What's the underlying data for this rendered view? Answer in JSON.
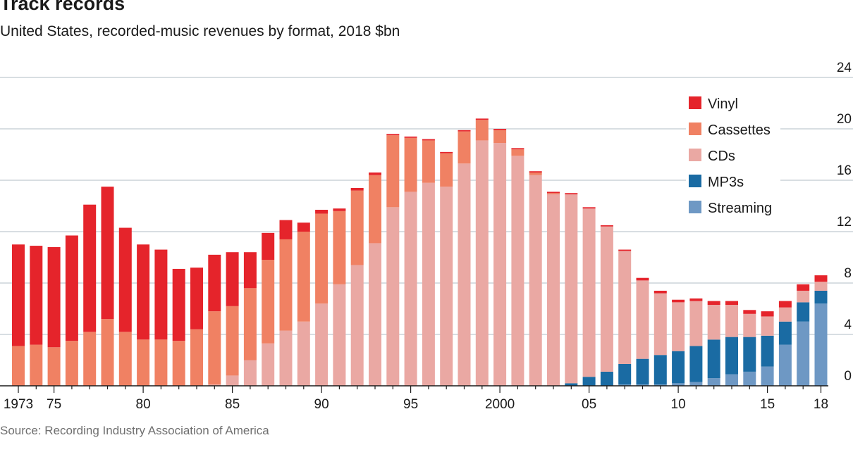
{
  "chart_data": {
    "type": "bar",
    "stacked": true,
    "title": "Track records",
    "subtitle": "United States, recorded-music revenues by format, 2018 $bn",
    "source": "Source: Recording Industry Association of America",
    "categories": [
      1973,
      1974,
      1975,
      1976,
      1977,
      1978,
      1979,
      1980,
      1981,
      1982,
      1983,
      1984,
      1985,
      1986,
      1987,
      1988,
      1989,
      1990,
      1991,
      1992,
      1993,
      1994,
      1995,
      1996,
      1997,
      1998,
      1999,
      2000,
      2001,
      2002,
      2003,
      2004,
      2005,
      2006,
      2007,
      2008,
      2009,
      2010,
      2011,
      2012,
      2013,
      2014,
      2015,
      2016,
      2017,
      2018
    ],
    "x_tick_labels": [
      {
        "year": 1973,
        "label": "1973"
      },
      {
        "year": 1975,
        "label": "75"
      },
      {
        "year": 1980,
        "label": "80"
      },
      {
        "year": 1985,
        "label": "85"
      },
      {
        "year": 1990,
        "label": "90"
      },
      {
        "year": 1995,
        "label": "95"
      },
      {
        "year": 2000,
        "label": "2000"
      },
      {
        "year": 2005,
        "label": "05"
      },
      {
        "year": 2010,
        "label": "10"
      },
      {
        "year": 2015,
        "label": "15"
      },
      {
        "year": 2018,
        "label": "18"
      }
    ],
    "y_ticks": [
      0,
      4,
      8,
      12,
      16,
      20,
      24
    ],
    "ylim": [
      0,
      24
    ],
    "y_axis_side": "right",
    "grid": true,
    "legend_position": "top-right",
    "series": [
      {
        "name": "Streaming",
        "color": "#6e98c4",
        "values": [
          0,
          0,
          0,
          0,
          0,
          0,
          0,
          0,
          0,
          0,
          0,
          0,
          0,
          0,
          0,
          0,
          0,
          0,
          0,
          0,
          0,
          0,
          0,
          0,
          0,
          0,
          0,
          0,
          0,
          0,
          0,
          0,
          0,
          0,
          0.1,
          0.1,
          0.1,
          0.2,
          0.3,
          0.6,
          0.9,
          1.1,
          1.5,
          3.2,
          5.0,
          6.4
        ]
      },
      {
        "name": "MP3s",
        "color": "#1a6ba3",
        "values": [
          0,
          0,
          0,
          0,
          0,
          0,
          0,
          0,
          0,
          0,
          0,
          0,
          0,
          0,
          0,
          0,
          0,
          0,
          0,
          0,
          0,
          0,
          0,
          0,
          0,
          0,
          0,
          0,
          0,
          0,
          0,
          0.2,
          0.7,
          1.1,
          1.6,
          2.0,
          2.3,
          2.5,
          2.8,
          3.0,
          2.9,
          2.7,
          2.4,
          1.8,
          1.5,
          1.0
        ]
      },
      {
        "name": "CDs",
        "color": "#eaa8a3",
        "values": [
          0,
          0,
          0,
          0,
          0,
          0,
          0,
          0,
          0,
          0,
          0,
          0.1,
          0.8,
          2.0,
          3.3,
          4.3,
          5.0,
          6.4,
          7.9,
          9.4,
          11.1,
          13.9,
          15.1,
          15.8,
          15.5,
          17.3,
          19.1,
          18.9,
          17.9,
          16.4,
          14.9,
          14.7,
          13.1,
          11.3,
          8.8,
          6.1,
          4.8,
          3.8,
          3.5,
          2.7,
          2.5,
          1.8,
          1.5,
          1.1,
          0.9,
          0.7
        ]
      },
      {
        "name": "Cassettes",
        "color": "#f08163",
        "values": [
          3.1,
          3.2,
          3.0,
          3.5,
          4.2,
          5.2,
          4.2,
          3.6,
          3.6,
          3.5,
          4.4,
          5.7,
          5.4,
          5.6,
          6.5,
          7.1,
          7.0,
          7.0,
          5.7,
          5.8,
          5.3,
          5.6,
          4.2,
          3.3,
          2.6,
          2.5,
          1.6,
          1.0,
          0.5,
          0.2,
          0.1,
          0,
          0,
          0,
          0,
          0,
          0,
          0,
          0,
          0,
          0,
          0,
          0,
          0,
          0,
          0
        ]
      },
      {
        "name": "Vinyl",
        "color": "#e5242b",
        "values": [
          7.9,
          7.7,
          7.8,
          8.2,
          9.9,
          10.3,
          8.1,
          7.4,
          7.0,
          5.6,
          4.8,
          4.4,
          4.2,
          2.8,
          2.1,
          1.5,
          0.7,
          0.3,
          0.2,
          0.2,
          0.2,
          0.1,
          0.1,
          0.1,
          0.1,
          0.1,
          0.1,
          0.1,
          0.1,
          0.1,
          0.1,
          0.1,
          0.1,
          0.1,
          0.1,
          0.2,
          0.2,
          0.2,
          0.2,
          0.3,
          0.3,
          0.3,
          0.4,
          0.5,
          0.5,
          0.5
        ]
      }
    ],
    "legend_order": [
      "Vinyl",
      "Cassettes",
      "CDs",
      "MP3s",
      "Streaming"
    ]
  }
}
